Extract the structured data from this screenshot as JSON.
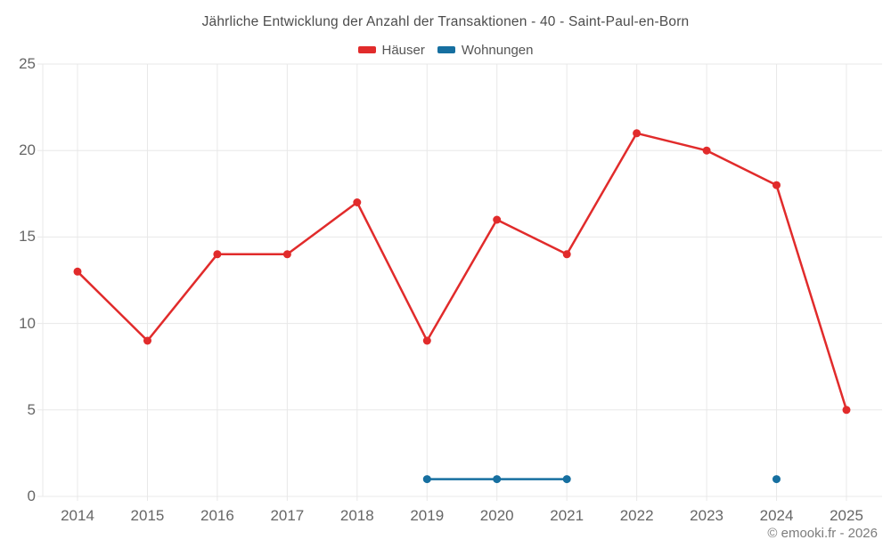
{
  "chart_data": {
    "type": "line",
    "title": "Jährliche Entwicklung der Anzahl der Transaktionen - 40 - Saint-Paul-en-Born",
    "categories": [
      "2014",
      "2015",
      "2016",
      "2017",
      "2018",
      "2019",
      "2020",
      "2021",
      "2022",
      "2023",
      "2024",
      "2025"
    ],
    "yticks": [
      0,
      5,
      10,
      15,
      20,
      25
    ],
    "ylim": [
      0,
      25
    ],
    "grid": true,
    "legend_position": "top",
    "series": [
      {
        "name": "Häuser",
        "color": "#e12b2b",
        "values": [
          13,
          9,
          14,
          14,
          17,
          9,
          16,
          14,
          21,
          20,
          18,
          5
        ]
      },
      {
        "name": "Wohnungen",
        "color": "#166fa0",
        "values": [
          null,
          null,
          null,
          null,
          null,
          1,
          1,
          1,
          null,
          null,
          1,
          null
        ]
      }
    ]
  },
  "footer": {
    "credit": "© emooki.fr - 2026"
  },
  "colors": {
    "grid": "#e8e8e8",
    "axis_text": "#666666",
    "title_text": "#4c4c4c",
    "footer_text": "#7c7c7c",
    "background": "#ffffff"
  }
}
